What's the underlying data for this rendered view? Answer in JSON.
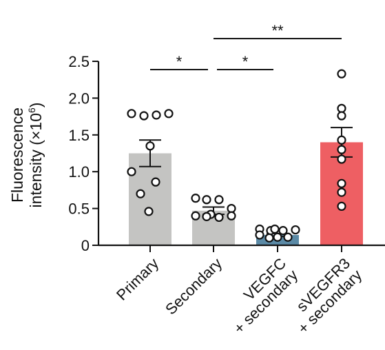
{
  "chart_data": {
    "type": "bar",
    "ylabel_line1": "Fluorescence",
    "ylabel_line2": "intensity (×10",
    "ylabel_exp": "6",
    "ylabel_close": ")",
    "ylim": [
      0,
      2.5
    ],
    "yticks": [
      "0",
      "0.5",
      "1.0",
      "1.5",
      "2.0",
      "2.5"
    ],
    "categories": [
      {
        "lines": [
          "Primary"
        ]
      },
      {
        "lines": [
          "Secondary"
        ]
      },
      {
        "lines": [
          "VEGFC",
          "+ secondary"
        ]
      },
      {
        "lines": [
          "sVEGFR3",
          "+ secondary"
        ]
      }
    ],
    "means": [
      1.25,
      0.47,
      0.14,
      1.4
    ],
    "sem": [
      0.18,
      0.05,
      0.02,
      0.2
    ],
    "bar_colors": [
      "#c4c4c2",
      "#c4c4c2",
      "#5b8aa6",
      "#ee5f63"
    ],
    "points": [
      [
        1.79,
        1.76,
        1.77,
        1.79,
        1.35,
        1.0,
        0.86,
        0.7,
        0.46
      ],
      [
        0.64,
        0.62,
        0.62,
        0.5,
        0.42,
        0.4,
        0.39,
        0.38,
        0.4
      ],
      [
        0.22,
        0.2,
        0.2,
        0.21,
        0.22,
        0.14,
        0.11,
        0.11,
        0.1
      ],
      [
        2.33,
        1.86,
        1.76,
        1.43,
        1.3,
        1.17,
        0.84,
        0.72,
        0.53
      ]
    ],
    "significance": [
      {
        "from": 0,
        "to": 1,
        "level": 0,
        "label": "*"
      },
      {
        "from": 1,
        "to": 2,
        "level": 0,
        "label": "*"
      },
      {
        "from": 1,
        "to": 3,
        "level": 1,
        "label": "**"
      }
    ],
    "grid": false,
    "legend": "none"
  }
}
